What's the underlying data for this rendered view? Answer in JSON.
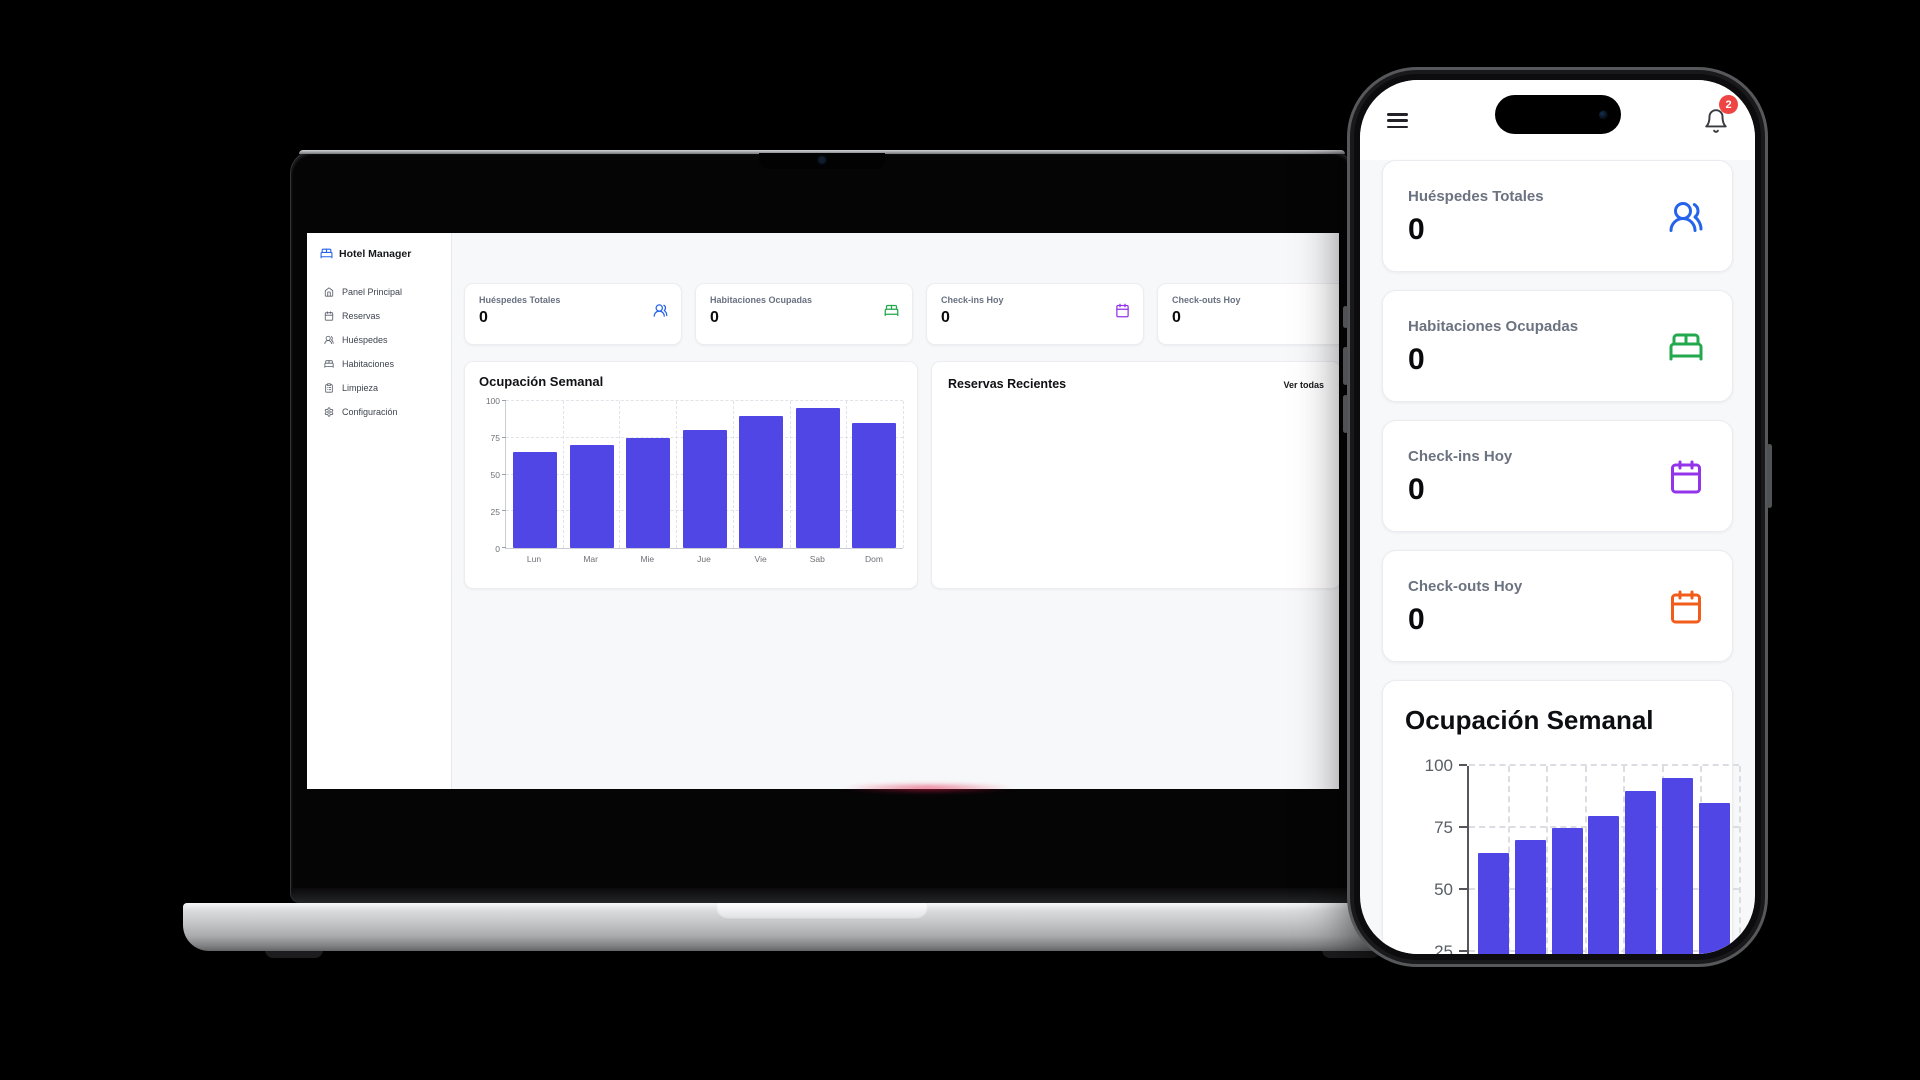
{
  "app": {
    "brand": "Hotel Manager",
    "sidebar": [
      {
        "label": "Panel Principal",
        "icon": "home-icon"
      },
      {
        "label": "Reservas",
        "icon": "calendar-icon"
      },
      {
        "label": "Huéspedes",
        "icon": "users-icon"
      },
      {
        "label": "Habitaciones",
        "icon": "bed-icon"
      },
      {
        "label": "Limpieza",
        "icon": "clipboard-icon"
      },
      {
        "label": "Configuración",
        "icon": "gear-icon"
      }
    ],
    "stats": [
      {
        "label": "Huéspedes Totales",
        "value": "0",
        "icon": "users-icon",
        "color": "#2563eb"
      },
      {
        "label": "Habitaciones Ocupadas",
        "value": "0",
        "icon": "bed-icon",
        "color": "#22a84d"
      },
      {
        "label": "Check-ins Hoy",
        "value": "0",
        "icon": "calendar-icon",
        "color": "#9333ea"
      },
      {
        "label": "Check-outs Hoy",
        "value": "0",
        "icon": "calendar-icon",
        "color": "#f25c1a"
      }
    ],
    "recent_reservations": {
      "title": "Reservas Recientes",
      "link_label": "Ver todas"
    }
  },
  "phone": {
    "notification_badge": "2"
  },
  "chart_data": {
    "type": "bar",
    "title": "Ocupación Semanal",
    "categories": [
      "Lun",
      "Mar",
      "Mie",
      "Jue",
      "Vie",
      "Sab",
      "Dom"
    ],
    "values": [
      65,
      70,
      75,
      80,
      90,
      95,
      85
    ],
    "xlabel": "",
    "ylabel": "",
    "ylim": [
      0,
      100
    ],
    "yticks": [
      0,
      25,
      50,
      75,
      100
    ],
    "grid": "dashed",
    "legend": "none",
    "bar_color": "#4f46e5"
  }
}
